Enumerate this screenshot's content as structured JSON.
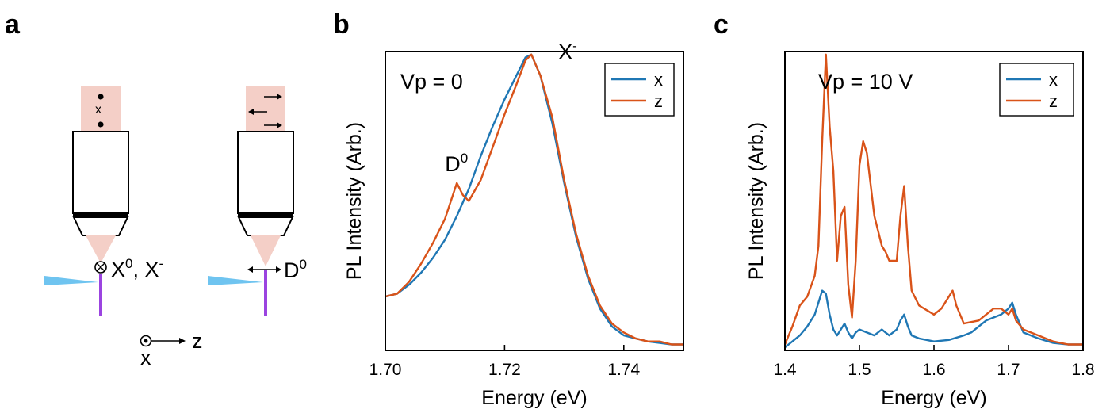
{
  "panels": {
    "a": {
      "letter": "a",
      "left_polarization_symbol": "x",
      "left_label": "X",
      "left_label_sup": "0",
      "left_label_sep": ", ",
      "left_label_2": "X",
      "left_label_2_sup": "-",
      "right_label": "D",
      "right_label_sup": "0",
      "axis_z": "z",
      "axis_x": "x"
    },
    "b": {
      "letter": "b"
    },
    "c": {
      "letter": "c"
    }
  },
  "colors": {
    "x": "#1f77b4",
    "z": "#d95319",
    "beam": "#f4cfc7",
    "fiber": "#9b44e0",
    "laser": "#6fc4f0"
  },
  "chart_data": [
    {
      "type": "line",
      "panel": "b",
      "annotation": "Vp = 0",
      "xlabel": "Energy (eV)",
      "ylabel": "PL Intensity (Arb.)",
      "xlim": [
        1.7,
        1.75
      ],
      "ylim": [
        0,
        1
      ],
      "xticks": [
        "1.70",
        "1.72",
        "1.74"
      ],
      "xtick_values": [
        1.7,
        1.72,
        1.74
      ],
      "peak_labels": [
        {
          "text": "X",
          "sup": "-",
          "x": 1.729,
          "y": 0.975
        },
        {
          "text": "D",
          "sup": "0",
          "x": 1.71,
          "y": 0.6
        }
      ],
      "legend": {
        "position": "top-right",
        "entries": [
          "x",
          "z"
        ]
      },
      "series": [
        {
          "name": "x",
          "x": [
            1.7,
            1.702,
            1.704,
            1.706,
            1.708,
            1.71,
            1.712,
            1.714,
            1.716,
            1.718,
            1.72,
            1.722,
            1.7235,
            1.7245,
            1.726,
            1.728,
            1.73,
            1.732,
            1.734,
            1.736,
            1.738,
            1.74,
            1.742,
            1.744,
            1.746,
            1.748,
            1.75
          ],
          "y": [
            0.18,
            0.19,
            0.22,
            0.26,
            0.31,
            0.37,
            0.45,
            0.54,
            0.65,
            0.75,
            0.84,
            0.92,
            0.98,
            0.99,
            0.92,
            0.76,
            0.56,
            0.38,
            0.24,
            0.14,
            0.08,
            0.05,
            0.04,
            0.03,
            0.025,
            0.02,
            0.02
          ]
        },
        {
          "name": "z",
          "x": [
            1.7,
            1.702,
            1.704,
            1.706,
            1.708,
            1.71,
            1.711,
            1.712,
            1.713,
            1.714,
            1.716,
            1.718,
            1.72,
            1.722,
            1.7235,
            1.7245,
            1.726,
            1.728,
            1.73,
            1.732,
            1.734,
            1.736,
            1.738,
            1.74,
            1.742,
            1.744,
            1.746,
            1.748,
            1.75
          ],
          "y": [
            0.18,
            0.19,
            0.23,
            0.29,
            0.36,
            0.44,
            0.5,
            0.56,
            0.52,
            0.5,
            0.57,
            0.68,
            0.79,
            0.89,
            0.97,
            0.99,
            0.92,
            0.78,
            0.57,
            0.39,
            0.25,
            0.15,
            0.09,
            0.06,
            0.04,
            0.03,
            0.03,
            0.02,
            0.02
          ]
        }
      ]
    },
    {
      "type": "line",
      "panel": "c",
      "annotation": "Vp = 10 V",
      "xlabel": "Energy (eV)",
      "ylabel": "PL Intensity (Arb.)",
      "xlim": [
        1.4,
        1.8
      ],
      "ylim": [
        0,
        1
      ],
      "xticks": [
        "1.4",
        "1.5",
        "1.6",
        "1.7",
        "1.8"
      ],
      "xtick_values": [
        1.4,
        1.5,
        1.6,
        1.7,
        1.8
      ],
      "legend": {
        "position": "top-right",
        "entries": [
          "x",
          "z"
        ]
      },
      "series": [
        {
          "name": "x",
          "x": [
            1.4,
            1.41,
            1.42,
            1.43,
            1.44,
            1.45,
            1.455,
            1.46,
            1.465,
            1.47,
            1.475,
            1.48,
            1.485,
            1.49,
            1.495,
            1.5,
            1.51,
            1.52,
            1.53,
            1.535,
            1.54,
            1.55,
            1.555,
            1.56,
            1.565,
            1.57,
            1.58,
            1.6,
            1.62,
            1.64,
            1.65,
            1.66,
            1.67,
            1.68,
            1.69,
            1.7,
            1.705,
            1.71,
            1.72,
            1.74,
            1.76,
            1.78,
            1.8
          ],
          "y": [
            0.01,
            0.03,
            0.05,
            0.08,
            0.12,
            0.2,
            0.19,
            0.12,
            0.07,
            0.05,
            0.07,
            0.09,
            0.06,
            0.04,
            0.06,
            0.07,
            0.06,
            0.05,
            0.07,
            0.06,
            0.05,
            0.07,
            0.1,
            0.12,
            0.08,
            0.05,
            0.04,
            0.03,
            0.035,
            0.05,
            0.06,
            0.08,
            0.1,
            0.11,
            0.12,
            0.14,
            0.16,
            0.12,
            0.06,
            0.04,
            0.025,
            0.02,
            0.02
          ]
        },
        {
          "name": "z",
          "x": [
            1.4,
            1.41,
            1.42,
            1.43,
            1.44,
            1.445,
            1.45,
            1.455,
            1.46,
            1.465,
            1.47,
            1.475,
            1.48,
            1.485,
            1.49,
            1.495,
            1.5,
            1.505,
            1.51,
            1.52,
            1.53,
            1.535,
            1.54,
            1.55,
            1.555,
            1.56,
            1.565,
            1.57,
            1.58,
            1.6,
            1.61,
            1.62,
            1.625,
            1.63,
            1.64,
            1.66,
            1.68,
            1.69,
            1.7,
            1.705,
            1.71,
            1.72,
            1.74,
            1.76,
            1.78,
            1.8
          ],
          "y": [
            0.02,
            0.08,
            0.15,
            0.18,
            0.25,
            0.35,
            0.7,
            0.99,
            0.75,
            0.6,
            0.3,
            0.45,
            0.48,
            0.22,
            0.11,
            0.3,
            0.62,
            0.7,
            0.66,
            0.45,
            0.35,
            0.33,
            0.3,
            0.3,
            0.45,
            0.55,
            0.35,
            0.2,
            0.15,
            0.12,
            0.14,
            0.18,
            0.2,
            0.15,
            0.09,
            0.1,
            0.14,
            0.14,
            0.12,
            0.14,
            0.1,
            0.07,
            0.05,
            0.03,
            0.02,
            0.02
          ]
        }
      ]
    }
  ]
}
